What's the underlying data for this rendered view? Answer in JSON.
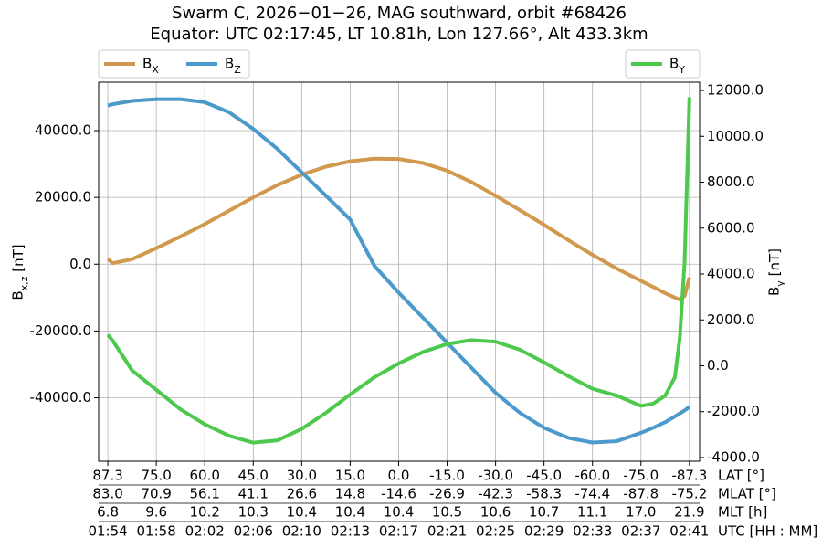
{
  "chart_data": {
    "type": "line",
    "title": "Swarm C, 2026−01−26, MAG southward, orbit #68426",
    "subtitle": "Equator: UTC 02:17:45, LT 10.81h, Lon 127.66°, Alt 433.3km",
    "ylabel": "Bx,z [nT]",
    "y2label": "By [nT]",
    "grid": true,
    "legend": {
      "y": "upper left",
      "y2": "upper right"
    },
    "xlim": [
      -0.19,
      12.21
    ],
    "xticks": [
      0,
      1,
      2,
      3,
      4,
      5,
      6,
      7,
      8,
      9,
      10,
      11,
      12
    ],
    "xrows": [
      {
        "name": "LAT [°]",
        "labels": [
          "87.3",
          "75.0",
          "60.0",
          "45.0",
          "30.0",
          "15.0",
          "0.0",
          "-15.0",
          "-30.0",
          "-45.0",
          "-60.0",
          "-75.0",
          "-87.3"
        ]
      },
      {
        "name": "MLAT [°]",
        "labels": [
          "83.0",
          "70.9",
          "56.1",
          "41.1",
          "26.6",
          "14.8",
          "-14.6",
          "-26.9",
          "-42.3",
          "-58.3",
          "-74.4",
          "-87.8",
          "-75.2"
        ]
      },
      {
        "name": "MLT [h]",
        "labels": [
          "6.8",
          "9.6",
          "10.2",
          "10.3",
          "10.4",
          "10.4",
          "10.4",
          "10.5",
          "10.6",
          "10.7",
          "11.1",
          "17.0",
          "21.9"
        ]
      },
      {
        "name": "UTC [HH : MM]",
        "labels": [
          "01:54",
          "01:58",
          "02:02",
          "02:06",
          "02:10",
          "02:13",
          "02:17",
          "02:21",
          "02:25",
          "02:29",
          "02:33",
          "02:37",
          "02:41"
        ]
      }
    ],
    "ylim": [
      -59000,
      54500
    ],
    "yticks": [
      {
        "value": -40000,
        "label": "-40000.0"
      },
      {
        "value": -20000,
        "label": "-20000.0"
      },
      {
        "value": 0,
        "label": "0.0"
      },
      {
        "value": 20000,
        "label": "20000.0"
      },
      {
        "value": 40000,
        "label": "40000.0"
      }
    ],
    "y2lim": [
      -4160,
      12360
    ],
    "y2ticks": [
      {
        "value": -4000,
        "label": "-4000.0"
      },
      {
        "value": -2000,
        "label": "-2000.0"
      },
      {
        "value": 0,
        "label": "0.0"
      },
      {
        "value": 2000,
        "label": "2000.0"
      },
      {
        "value": 4000,
        "label": "4000.0"
      },
      {
        "value": 6000,
        "label": "6000.0"
      },
      {
        "value": 8000,
        "label": "8000.0"
      },
      {
        "value": 10000,
        "label": "10000.0"
      },
      {
        "value": 12000,
        "label": "12000.0"
      }
    ],
    "x": [
      0,
      0.1,
      0.5,
      1,
      1.5,
      2,
      2.5,
      3,
      3.5,
      4,
      4.5,
      5,
      5.5,
      6,
      6.5,
      7,
      7.5,
      8,
      8.5,
      9,
      9.5,
      10,
      10.5,
      11,
      11.25,
      11.5,
      11.7,
      11.8,
      11.9,
      12
    ],
    "series": [
      {
        "name": "BX",
        "color": "#d0994e",
        "axis": "y",
        "values": [
          1600,
          300,
          1500,
          4800,
          8300,
          12000,
          16000,
          20000,
          23700,
          26800,
          29200,
          30800,
          31600,
          31500,
          30300,
          28000,
          24600,
          20500,
          16200,
          11800,
          7200,
          2800,
          -1300,
          -5000,
          -6800,
          -8700,
          -10000,
          -10600,
          -9500,
          -4000
        ]
      },
      {
        "name": "BZ",
        "color": "#4b9acb",
        "axis": "y",
        "values": [
          47500,
          47900,
          48900,
          49400,
          49400,
          48500,
          45500,
          40500,
          34500,
          27500,
          20500,
          13400,
          -500,
          -8500,
          -16000,
          -23500,
          -31000,
          -38500,
          -44500,
          -49000,
          -52000,
          -53400,
          -53000,
          -50500,
          -49000,
          -47300,
          -45600,
          -44700,
          -43800,
          -42700
        ]
      },
      {
        "name": "BY",
        "color": "#4dc94d",
        "axis": "y2",
        "values": [
          1350,
          1100,
          -200,
          -1050,
          -1900,
          -2550,
          -3050,
          -3350,
          -3250,
          -2750,
          -2050,
          -1250,
          -500,
          100,
          600,
          950,
          1120,
          1050,
          700,
          150,
          -450,
          -1000,
          -1300,
          -1750,
          -1650,
          -1300,
          -500,
          1200,
          4500,
          11700
        ]
      }
    ]
  }
}
